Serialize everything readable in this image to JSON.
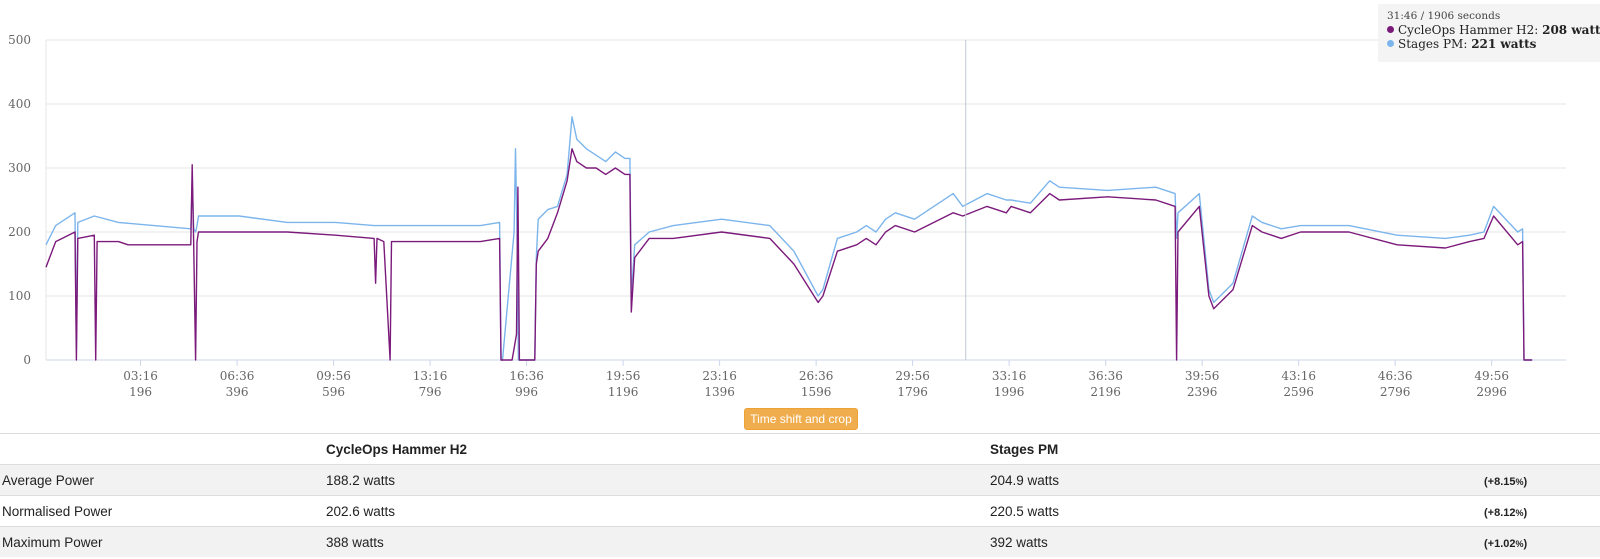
{
  "tooltip": {
    "time": "31:46 / 1906 seconds",
    "series1_name": "CycleOps Hammer H2",
    "series1_value": "208 watts",
    "series2_name": "Stages PM",
    "series2_value": "221 watts"
  },
  "button": {
    "label": "Time shift and crop"
  },
  "table": {
    "headers": [
      "",
      "CycleOps Hammer H2",
      "Stages PM",
      ""
    ],
    "rows": [
      {
        "label": "Average Power",
        "a": "188.2 watts",
        "b": "204.9 watts",
        "diff": "(+8.15",
        "unit": "%",
        "close": ")"
      },
      {
        "label": "Normalised Power",
        "a": "202.6 watts",
        "b": "220.5 watts",
        "diff": "(+8.12",
        "unit": "%",
        "close": ")"
      },
      {
        "label": "Maximum Power",
        "a": "388 watts",
        "b": "392 watts",
        "diff": "(+1.02",
        "unit": "%",
        "close": ")"
      }
    ]
  },
  "chart_data": {
    "type": "line",
    "xlabel": "",
    "ylabel": "",
    "xlim": [
      0,
      3150
    ],
    "ylim": [
      0,
      500
    ],
    "yticks": [
      0,
      100,
      200,
      300,
      400,
      500
    ],
    "xticks": [
      {
        "seconds": 196,
        "time": "03:16"
      },
      {
        "seconds": 396,
        "time": "06:36"
      },
      {
        "seconds": 596,
        "time": "09:56"
      },
      {
        "seconds": 796,
        "time": "13:16"
      },
      {
        "seconds": 996,
        "time": "16:36"
      },
      {
        "seconds": 1196,
        "time": "19:56"
      },
      {
        "seconds": 1396,
        "time": "23:16"
      },
      {
        "seconds": 1596,
        "time": "26:36"
      },
      {
        "seconds": 1796,
        "time": "29:56"
      },
      {
        "seconds": 1996,
        "time": "33:16"
      },
      {
        "seconds": 2196,
        "time": "36:36"
      },
      {
        "seconds": 2396,
        "time": "39:56"
      },
      {
        "seconds": 2596,
        "time": "43:16"
      },
      {
        "seconds": 2796,
        "time": "46:36"
      },
      {
        "seconds": 2996,
        "time": "49:56"
      }
    ],
    "crosshair_x": 1906,
    "grid": true,
    "legend": "top-right tooltip",
    "colors": {
      "series1": "#7b1a7b",
      "series2": "#7cb5ec"
    },
    "series": [
      {
        "name": "CycleOps Hammer H2",
        "x": [
          0,
          20,
          60,
          63,
          66,
          100,
          103,
          106,
          150,
          170,
          210,
          300,
          303,
          306,
          310,
          313,
          316,
          400,
          500,
          600,
          680,
          683,
          686,
          700,
          713,
          716,
          719,
          800,
          900,
          940,
          943,
          946,
          960,
          963,
          966,
          975,
          978,
          981,
          985,
          988,
          991,
          1010,
          1013,
          1016,
          1020,
          1040,
          1060,
          1080,
          1090,
          1100,
          1120,
          1140,
          1160,
          1180,
          1200,
          1210,
          1213,
          1220,
          1250,
          1300,
          1400,
          1500,
          1550,
          1600,
          1610,
          1640,
          1680,
          1700,
          1720,
          1740,
          1760,
          1800,
          1880,
          1900,
          1950,
          1990,
          2000,
          2040,
          2080,
          2100,
          2200,
          2300,
          2340,
          2343,
          2346,
          2390,
          2410,
          2420,
          2460,
          2500,
          2520,
          2560,
          2600,
          2700,
          2800,
          2900,
          2950,
          2980,
          3000,
          3050,
          3060,
          3063,
          3080
        ],
        "y": [
          145,
          185,
          200,
          0,
          190,
          195,
          0,
          185,
          185,
          180,
          180,
          180,
          305,
          180,
          0,
          185,
          200,
          200,
          200,
          195,
          190,
          120,
          190,
          185,
          0,
          185,
          185,
          185,
          185,
          190,
          0,
          0,
          0,
          0,
          0,
          40,
          270,
          0,
          0,
          0,
          0,
          0,
          0,
          150,
          170,
          190,
          230,
          280,
          330,
          310,
          300,
          300,
          290,
          300,
          290,
          290,
          75,
          160,
          190,
          190,
          200,
          190,
          150,
          90,
          100,
          170,
          180,
          190,
          180,
          200,
          210,
          200,
          230,
          225,
          240,
          230,
          240,
          230,
          260,
          250,
          255,
          250,
          240,
          0,
          200,
          240,
          100,
          80,
          110,
          210,
          200,
          190,
          200,
          200,
          180,
          175,
          185,
          190,
          225,
          180,
          185,
          0,
          0
        ]
      },
      {
        "name": "Stages PM",
        "x": [
          0,
          20,
          60,
          63,
          66,
          100,
          150,
          300,
          303,
          306,
          310,
          313,
          316,
          400,
          500,
          600,
          680,
          700,
          800,
          900,
          940,
          943,
          946,
          970,
          973,
          976,
          979,
          985,
          988,
          991,
          1010,
          1013,
          1016,
          1020,
          1040,
          1060,
          1080,
          1090,
          1100,
          1120,
          1140,
          1160,
          1180,
          1200,
          1210,
          1213,
          1220,
          1250,
          1300,
          1400,
          1500,
          1550,
          1600,
          1610,
          1640,
          1680,
          1700,
          1720,
          1740,
          1760,
          1800,
          1880,
          1900,
          1950,
          1990,
          2000,
          2040,
          2080,
          2100,
          2200,
          2300,
          2340,
          2343,
          2346,
          2390,
          2410,
          2420,
          2460,
          2500,
          2520,
          2560,
          2600,
          2700,
          2800,
          2900,
          2950,
          2980,
          3000,
          3050,
          3060,
          3063,
          3080
        ],
        "y": [
          180,
          210,
          230,
          20,
          215,
          225,
          215,
          205,
          280,
          205,
          200,
          210,
          225,
          225,
          215,
          215,
          210,
          210,
          210,
          210,
          215,
          0,
          0,
          200,
          330,
          200,
          0,
          0,
          0,
          0,
          0,
          0,
          160,
          220,
          235,
          240,
          290,
          380,
          345,
          330,
          320,
          310,
          325,
          315,
          315,
          100,
          180,
          200,
          210,
          220,
          210,
          170,
          100,
          110,
          190,
          200,
          210,
          200,
          220,
          230,
          220,
          260,
          240,
          260,
          250,
          250,
          245,
          280,
          270,
          265,
          270,
          260,
          190,
          230,
          260,
          110,
          90,
          120,
          225,
          215,
          205,
          210,
          210,
          195,
          190,
          195,
          200,
          240,
          200,
          205,
          0,
          0
        ]
      }
    ]
  }
}
